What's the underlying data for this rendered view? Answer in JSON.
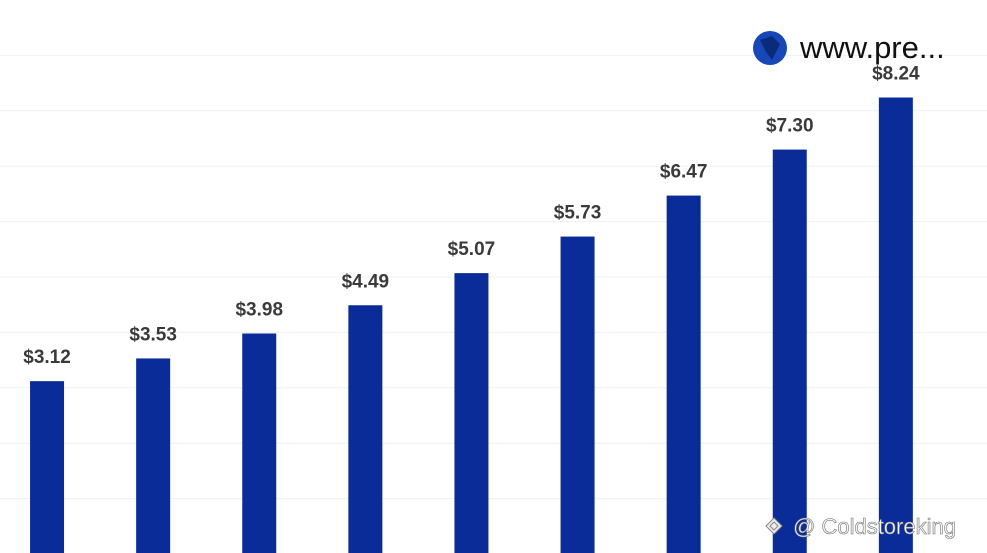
{
  "chart_data": {
    "type": "bar",
    "values": [
      3.12,
      3.53,
      3.98,
      4.49,
      5.07,
      5.73,
      6.47,
      7.3,
      8.24
    ],
    "value_labels": [
      "$3.12",
      "$3.53",
      "$3.98",
      "$4.49",
      "$5.07",
      "$5.73",
      "$6.47",
      "$7.30",
      "$8.24"
    ],
    "color": "#0a2c98",
    "ylim": [
      0,
      10
    ],
    "yticks": [
      1,
      2,
      3,
      4,
      5,
      6,
      7,
      8,
      9
    ],
    "grid": true
  },
  "watermarks": {
    "site": "www.pre...",
    "author": "@ Coldstoreking"
  }
}
